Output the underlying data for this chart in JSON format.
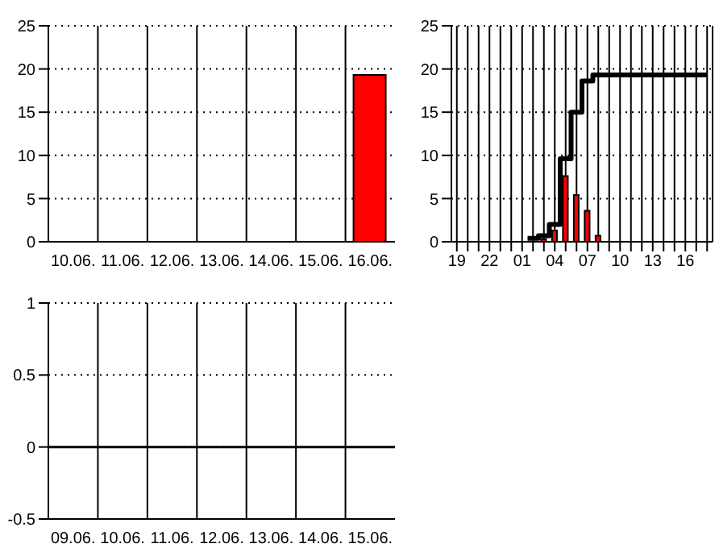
{
  "chart_data": [
    {
      "type": "bar",
      "categories": [
        "10.06.",
        "11.06.",
        "12.06.",
        "13.06.",
        "14.06.",
        "15.06.",
        "16.06."
      ],
      "values": [
        0,
        0,
        0,
        0,
        0,
        0,
        19.3
      ],
      "color": "#ff0000",
      "ylim": [
        0,
        25
      ],
      "yticks": [
        0,
        5,
        10,
        15,
        20,
        25
      ],
      "grid": true
    },
    {
      "type": "bar",
      "xlim": [
        "--06-15T18:30",
        "--06-16T18:30"
      ],
      "xticks": [
        {
          "value": "--06-15T19:00",
          "label": "19"
        },
        {
          "value": "--06-15T20:00",
          "label": null
        },
        {
          "value": "--06-15T21:00",
          "label": null
        },
        {
          "value": "--06-15T22:00",
          "label": "22"
        },
        {
          "value": "--06-15T23:00",
          "label": null
        },
        {
          "value": "--06-16T00:00",
          "label": null
        },
        {
          "value": "--06-16T01:00",
          "label": "01"
        },
        {
          "value": "--06-16T02:00",
          "label": null
        },
        {
          "value": "--06-16T03:00",
          "label": null
        },
        {
          "value": "--06-16T04:00",
          "label": "04"
        },
        {
          "value": "--06-16T05:00",
          "label": null
        },
        {
          "value": "--06-16T06:00",
          "label": null
        },
        {
          "value": "--06-16T07:00",
          "label": "07"
        },
        {
          "value": "--06-16T08:00",
          "label": null
        },
        {
          "value": "--06-16T09:00",
          "label": null
        },
        {
          "value": "--06-16T10:00",
          "label": "10"
        },
        {
          "value": "--06-16T11:00",
          "label": null
        },
        {
          "value": "--06-16T12:00",
          "label": null
        },
        {
          "value": "--06-16T13:00",
          "label": "13"
        },
        {
          "value": "--06-16T14:00",
          "label": null
        },
        {
          "value": "--06-16T15:00",
          "label": null
        },
        {
          "value": "--06-16T16:00",
          "label": "16"
        },
        {
          "value": "--06-16T17:00",
          "label": null
        },
        {
          "value": "--06-16T18:00",
          "label": null
        }
      ],
      "ylim": [
        0,
        25
      ],
      "yticks": [
        0,
        5,
        10,
        15,
        20,
        25
      ],
      "grid": true,
      "series": [
        {
          "color": "#ff0000",
          "x": [
            "--06-16T03:00",
            "--06-16T04:00",
            "--06-16T05:00",
            "--06-16T06:00",
            "--06-16T07:00",
            "--06-16T08:00"
          ],
          "values": [
            0.3,
            1.3,
            7.6,
            5.4,
            3.6,
            0.7
          ]
        },
        {
          "type": "step",
          "color": "#000000",
          "x": [
            "--06-16T01:30",
            "--06-16T02:30",
            "--06-16T03:30",
            "--06-16T04:30",
            "--06-16T05:30",
            "--06-16T06:30",
            "--06-16T07:30",
            "--06-16T18:00"
          ],
          "values": [
            0.4,
            0.7,
            2.0,
            9.6,
            15,
            18.6,
            19.3,
            19.3
          ]
        }
      ]
    },
    {
      "type": "bar",
      "categories": [
        "09.06.",
        "10.06.",
        "11.06.",
        "12.06.",
        "13.06.",
        "14.06.",
        "15.06."
      ],
      "values": [
        null,
        null,
        null,
        null,
        null,
        null,
        null
      ],
      "ylim": [
        -0.5,
        1
      ],
      "yticks": [
        -0.5,
        0,
        0.5,
        1
      ],
      "grid": true,
      "ref_lines": [
        {
          "axis": "y",
          "value": 0,
          "color": "#000000"
        }
      ]
    }
  ]
}
